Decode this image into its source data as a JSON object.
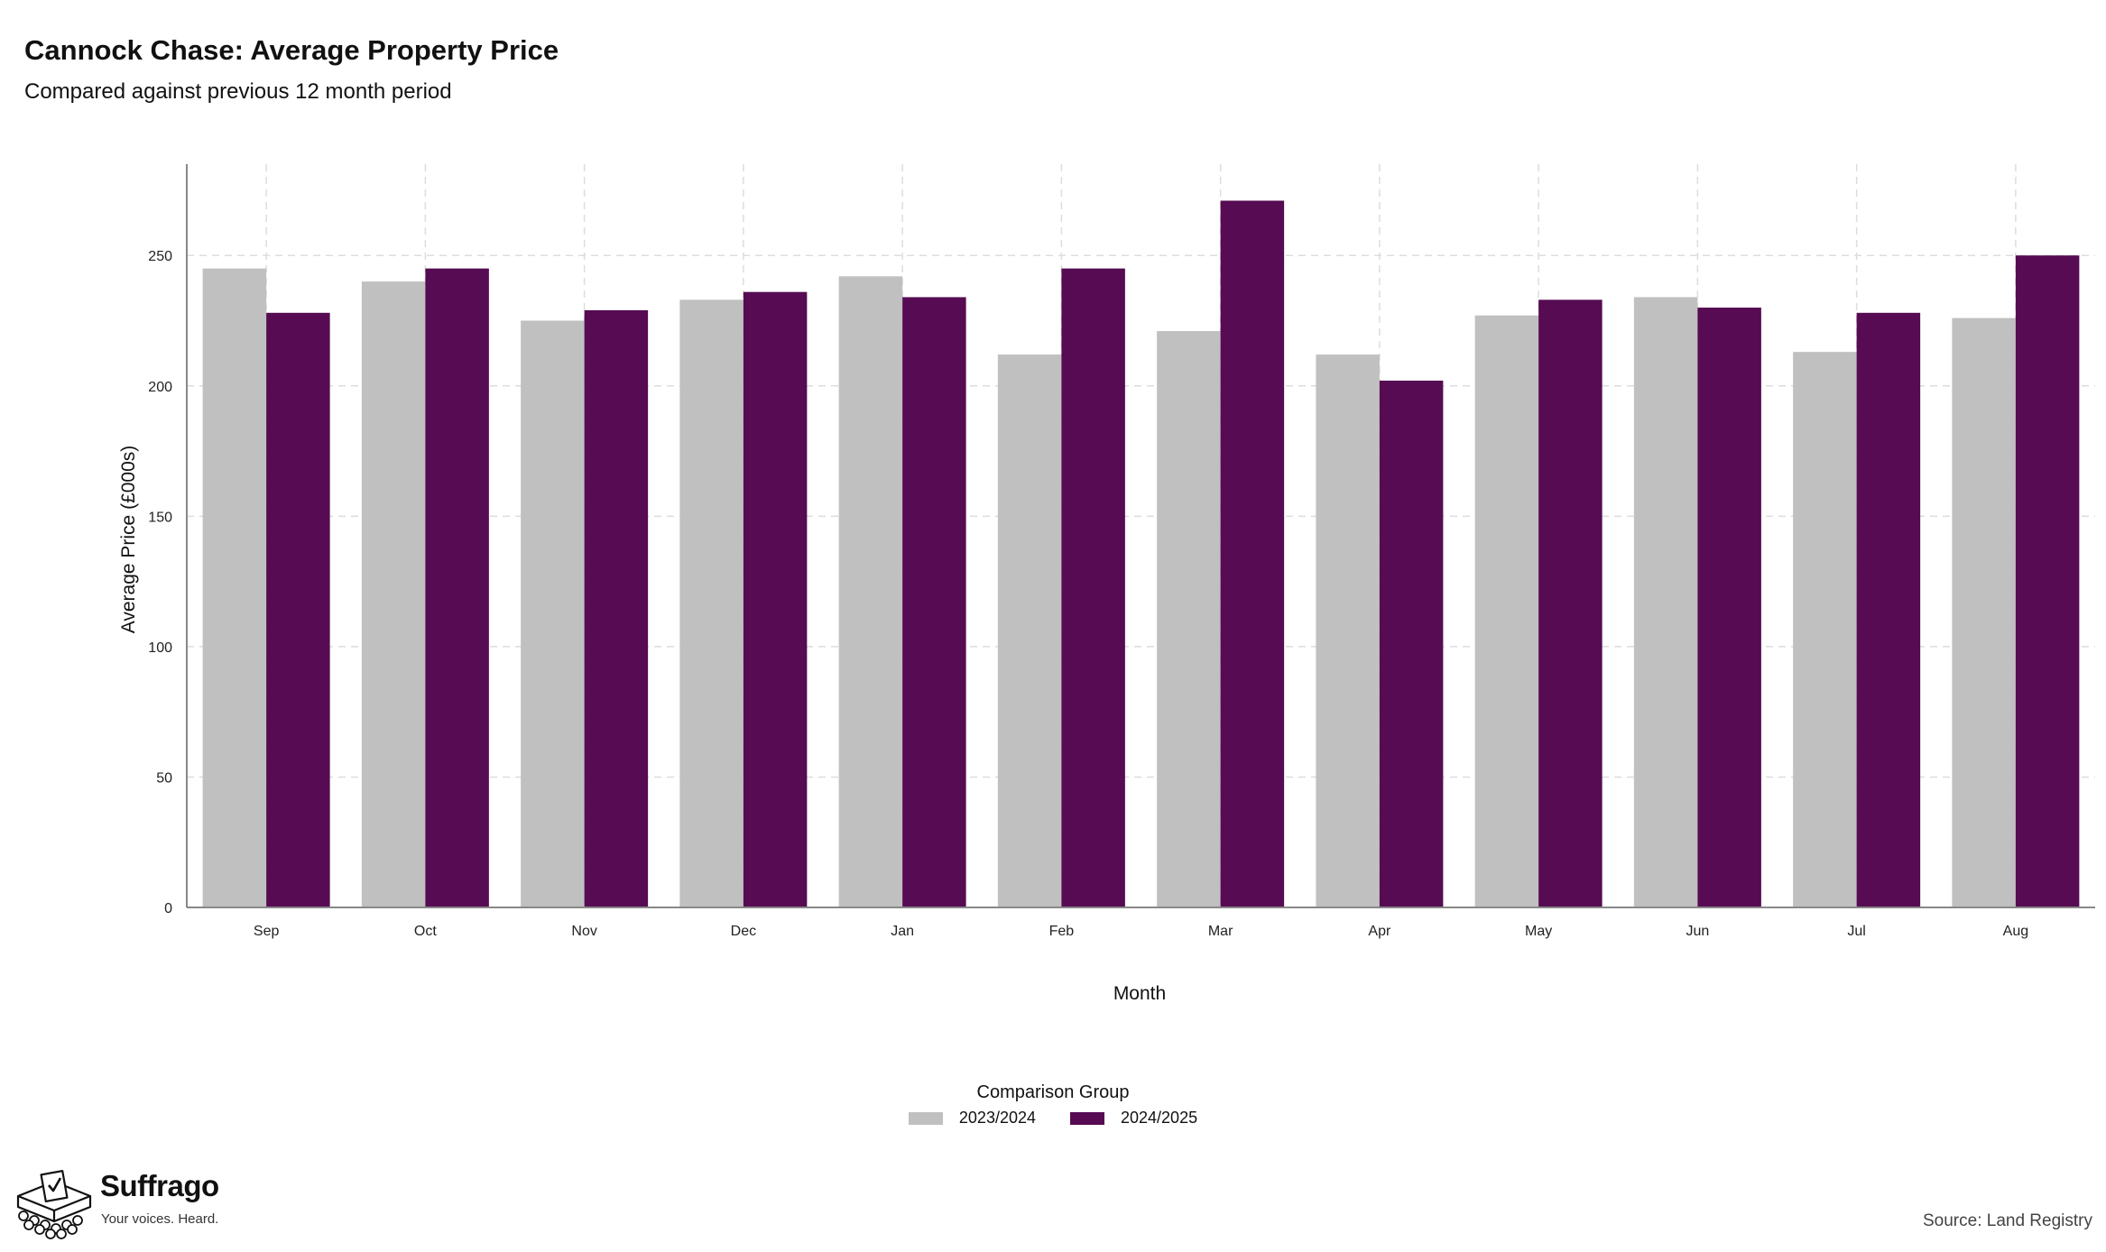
{
  "header": {
    "title": "Cannock Chase: Average Property Price",
    "subtitle": "Compared against previous 12 month period"
  },
  "chart_data": {
    "type": "bar",
    "title": "Cannock Chase: Average Property Price",
    "subtitle": "Compared against previous 12 month period",
    "xlabel": "Month",
    "ylabel": "Average Price (£000s)",
    "categories": [
      "Sep",
      "Oct",
      "Nov",
      "Dec",
      "Jan",
      "Feb",
      "Mar",
      "Apr",
      "May",
      "Jun",
      "Jul",
      "Aug"
    ],
    "series": [
      {
        "name": "2023/2024",
        "color": "#c0c0c0",
        "values": [
          245,
          240,
          225,
          233,
          242,
          212,
          221,
          212,
          227,
          234,
          213,
          226
        ]
      },
      {
        "name": "2024/2025",
        "color": "#560b52",
        "values": [
          228,
          245,
          229,
          236,
          234,
          245,
          271,
          202,
          233,
          230,
          228,
          250
        ]
      }
    ],
    "ylim": [
      0,
      285
    ],
    "yticks": [
      0,
      50,
      100,
      150,
      200,
      250
    ],
    "grid": true,
    "legend": {
      "title": "Comparison Group",
      "placement": "bottom-center"
    }
  },
  "branding": {
    "name": "Suffrago",
    "tagline": "Your voices. Heard.",
    "logo_icon": "ballot-box-icon"
  },
  "footer": {
    "source": "Source: Land Registry"
  }
}
